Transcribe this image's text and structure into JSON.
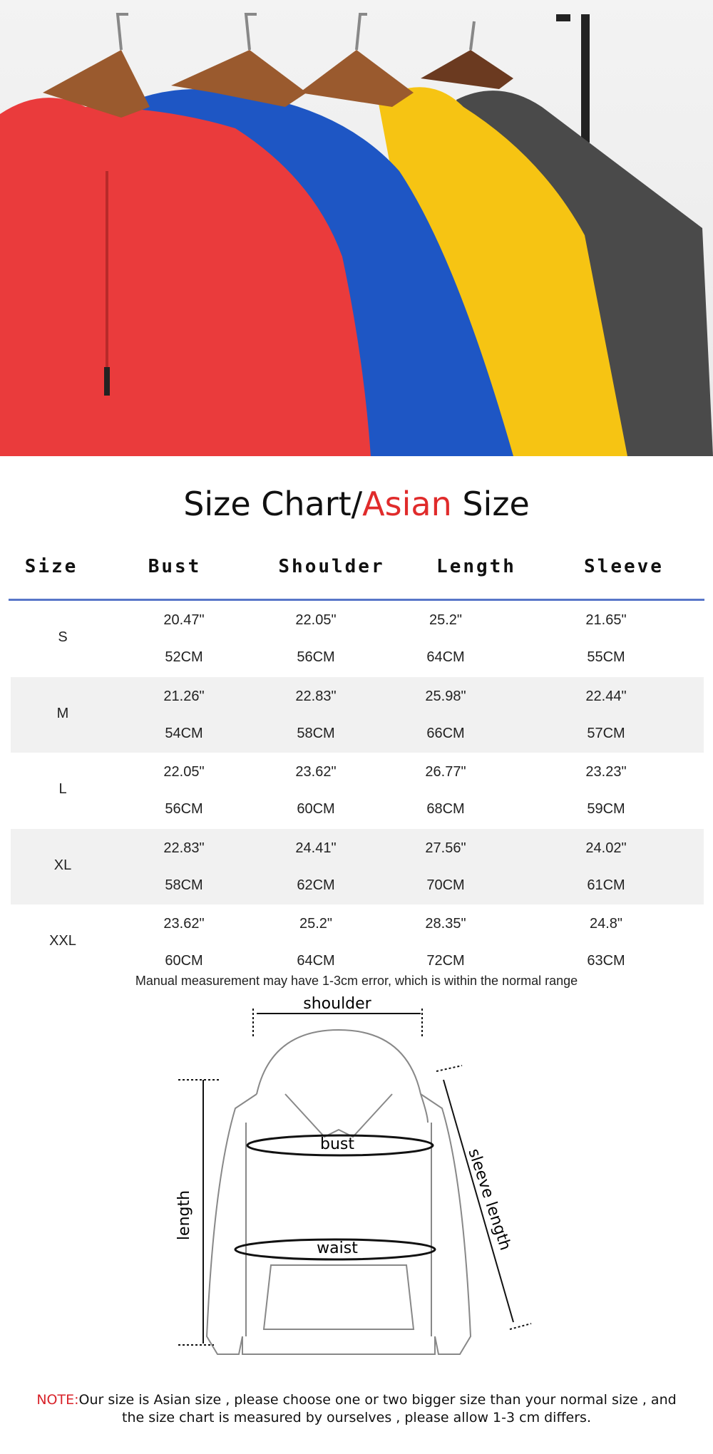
{
  "title": {
    "part1": "Size Chart/",
    "highlight": "Asian",
    "part2": " Size"
  },
  "colors": {
    "accent": "#e02b2b",
    "rule": "#5876c9",
    "alt_row": "#f1f1f1"
  },
  "headers": [
    "Size",
    "Bust",
    "Shoulder",
    "Length",
    "Sleeve"
  ],
  "rows": [
    {
      "size": "S",
      "bust_in": "20.47\"",
      "bust_cm": "52CM",
      "shoulder_in": "22.05\"",
      "shoulder_cm": "56CM",
      "length_in": "25.2\"",
      "length_cm": "64CM",
      "sleeve_in": "21.65\"",
      "sleeve_cm": "55CM"
    },
    {
      "size": "M",
      "bust_in": "21.26\"",
      "bust_cm": "54CM",
      "shoulder_in": "22.83\"",
      "shoulder_cm": "58CM",
      "length_in": "25.98\"",
      "length_cm": "66CM",
      "sleeve_in": "22.44\"",
      "sleeve_cm": "57CM"
    },
    {
      "size": "L",
      "bust_in": "22.05\"",
      "bust_cm": "56CM",
      "shoulder_in": "23.62\"",
      "shoulder_cm": "60CM",
      "length_in": "26.77\"",
      "length_cm": "68CM",
      "sleeve_in": "23.23\"",
      "sleeve_cm": "59CM"
    },
    {
      "size": "XL",
      "bust_in": "22.83\"",
      "bust_cm": "58CM",
      "shoulder_in": "24.41\"",
      "shoulder_cm": "62CM",
      "length_in": "27.56\"",
      "length_cm": "70CM",
      "sleeve_in": "24.02\"",
      "sleeve_cm": "61CM"
    },
    {
      "size": "XXL",
      "bust_in": "23.62\"",
      "bust_cm": "60CM",
      "shoulder_in": "25.2\"",
      "shoulder_cm": "64CM",
      "length_in": "28.35\"",
      "length_cm": "72CM",
      "sleeve_in": "24.8\"",
      "sleeve_cm": "63CM"
    }
  ],
  "measurement_note": "Manual measurement may have 1-3cm error, which is within the normal range",
  "diagram": {
    "shoulder": "shoulder",
    "bust": "bust",
    "waist": "waist",
    "length": "length",
    "sleeve_length": "sleeve length"
  },
  "note": {
    "label": "NOTE:",
    "text": "Our size is Asian size , please choose one or two bigger size than your normal size , and the size chart is measured by ourselves , please allow 1-3 cm differs."
  },
  "photo": {
    "hoodie_colors": [
      "#ea3b3c",
      "#1e56c4",
      "#f6c413",
      "#4a4a4a"
    ]
  }
}
